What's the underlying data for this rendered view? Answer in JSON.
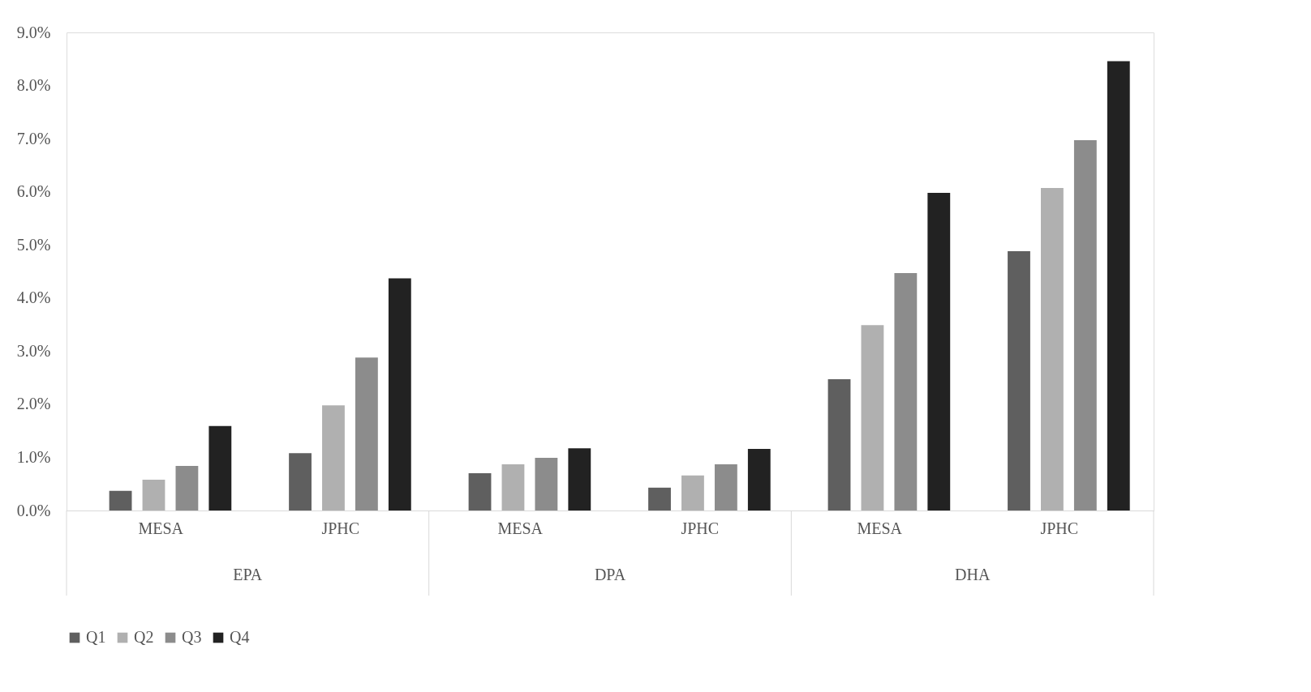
{
  "chart_data": {
    "type": "bar",
    "categories": [
      "MESA",
      "JPHC",
      "MESA",
      "JPHC",
      "MESA",
      "JPHC"
    ],
    "annotations": [
      "EPA",
      "DPA",
      "DHA"
    ],
    "series": [
      {
        "name": "Q1",
        "color": "#5f5f5f",
        "values": [
          0.37,
          1.08,
          0.7,
          0.43,
          2.47,
          4.88
        ]
      },
      {
        "name": "Q2",
        "color": "#b0b0b0",
        "values": [
          0.58,
          1.98,
          0.87,
          0.66,
          3.49,
          6.07
        ]
      },
      {
        "name": "Q3",
        "color": "#8c8c8c",
        "values": [
          0.84,
          2.88,
          0.99,
          0.87,
          4.47,
          6.97
        ]
      },
      {
        "name": "Q4",
        "color": "#222222",
        "values": [
          1.59,
          4.37,
          1.17,
          1.16,
          5.98,
          8.46
        ]
      }
    ],
    "ylim": [
      0,
      9
    ],
    "yticks": [
      {
        "value": 0,
        "label": "0.0%"
      },
      {
        "value": 1,
        "label": "1.0%"
      },
      {
        "value": 2,
        "label": "2.0%"
      },
      {
        "value": 3,
        "label": "3.0%"
      },
      {
        "value": 4,
        "label": "4.0%"
      },
      {
        "value": 5,
        "label": "5.0%"
      },
      {
        "value": 6,
        "label": "6.0%"
      },
      {
        "value": 7,
        "label": "7.0%"
      },
      {
        "value": 8,
        "label": "8.0%"
      },
      {
        "value": 9,
        "label": "9.0%"
      }
    ],
    "grid": false,
    "legend": "bottom"
  }
}
